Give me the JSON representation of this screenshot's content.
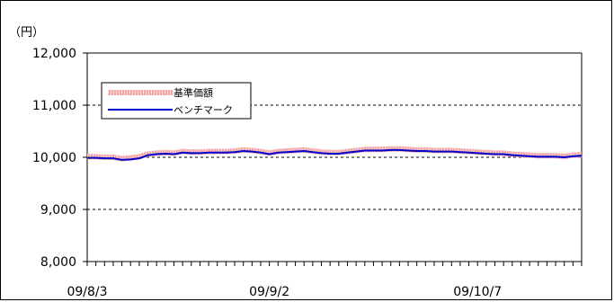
{
  "chart_data": {
    "type": "line",
    "unit_label": "（円）",
    "y_ticks": [
      "12,000",
      "11,000",
      "10,000",
      "9,000",
      "8,000"
    ],
    "y_tick_values": [
      12000,
      11000,
      10000,
      9000,
      8000
    ],
    "ylim": [
      8000,
      12000
    ],
    "x_tick_labels": [
      "09/8/3",
      "09/9/2",
      "09/10/7"
    ],
    "x_tick_label_indices": [
      0,
      21,
      45
    ],
    "grid": "dashed horizontal at 11,000 / 10,000 / 9,000",
    "legend_position": "top-left",
    "series": [
      {
        "name": "基準価額",
        "color": "#f4a6a6",
        "style": "thick-pink-band",
        "values": [
          10010,
          10010,
          10000,
          10000,
          9975,
          9990,
          10010,
          10060,
          10080,
          10090,
          10080,
          10110,
          10100,
          10100,
          10110,
          10110,
          10110,
          10120,
          10140,
          10130,
          10110,
          10080,
          10110,
          10120,
          10130,
          10140,
          10120,
          10100,
          10090,
          10090,
          10110,
          10130,
          10150,
          10150,
          10150,
          10160,
          10160,
          10150,
          10140,
          10140,
          10130,
          10130,
          10130,
          10120,
          10110,
          10100,
          10090,
          10080,
          10080,
          10060,
          10050,
          10040,
          10030,
          10030,
          10030,
          10020,
          10040,
          10050
        ]
      },
      {
        "name": "ベンチマーク",
        "color": "#0000cc",
        "style": "solid",
        "values": [
          9990,
          9990,
          9980,
          9980,
          9950,
          9960,
          9980,
          10040,
          10060,
          10070,
          10060,
          10090,
          10080,
          10080,
          10090,
          10090,
          10090,
          10100,
          10120,
          10110,
          10090,
          10060,
          10090,
          10100,
          10110,
          10120,
          10100,
          10080,
          10070,
          10070,
          10090,
          10110,
          10130,
          10130,
          10130,
          10140,
          10140,
          10130,
          10120,
          10120,
          10110,
          10110,
          10110,
          10100,
          10090,
          10080,
          10070,
          10060,
          10060,
          10040,
          10030,
          10020,
          10010,
          10010,
          10010,
          10000,
          10020,
          10030
        ]
      }
    ]
  }
}
